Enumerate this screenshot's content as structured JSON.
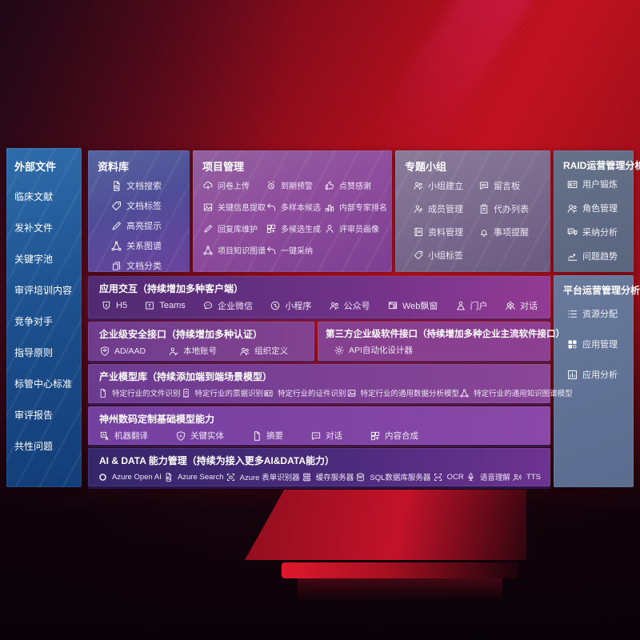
{
  "colors": {
    "background_red": "#b50e1b",
    "sidebar_blue": "#1f5296",
    "panel_purple": "#8a4598",
    "panel_slate": "#5f7090",
    "row_indigo": "#3a2a6e",
    "text": "#ffffff"
  },
  "sidebar": {
    "title": "外部文件",
    "items": [
      {
        "id": "clinical-literature",
        "label": "临床文献"
      },
      {
        "id": "supplement-files",
        "label": "发补文件"
      },
      {
        "id": "keyword-pool",
        "label": "关键字池"
      },
      {
        "id": "review-training-content",
        "label": "审评培训内容"
      },
      {
        "id": "competitors",
        "label": "竞争对手"
      },
      {
        "id": "guidelines",
        "label": "指导原则"
      },
      {
        "id": "standards-center-standards",
        "label": "标管中心标准"
      },
      {
        "id": "review-reports",
        "label": "审评报告"
      },
      {
        "id": "common-issues",
        "label": "共性问题"
      }
    ]
  },
  "repository": {
    "title": "资料库",
    "items": [
      {
        "id": "doc-search",
        "icon": "docsearch",
        "label": "文档搜索"
      },
      {
        "id": "doc-tag",
        "icon": "tag",
        "label": "文档标签"
      },
      {
        "id": "highlight-hint",
        "icon": "pen",
        "label": "高亮提示"
      },
      {
        "id": "relation-graph",
        "icon": "network",
        "label": "关系图谱"
      },
      {
        "id": "doc-category",
        "icon": "docs",
        "label": "文档分类"
      }
    ]
  },
  "project": {
    "title": "项目管理",
    "items": [
      {
        "id": "survey-upload",
        "icon": "cloudup",
        "label": "问卷上传"
      },
      {
        "id": "due-warning",
        "icon": "alarm",
        "label": "到期预警"
      },
      {
        "id": "like-thanks",
        "icon": "thumb",
        "label": "点赞感谢"
      },
      {
        "id": "key-info-extract",
        "icon": "picture",
        "label": "关键信息提取"
      },
      {
        "id": "multi-sample-candidate",
        "icon": "reply",
        "label": "多样本候选"
      },
      {
        "id": "internal-expert-ranking",
        "icon": "podium",
        "label": "内部专家排名"
      },
      {
        "id": "reply-lib-maintain",
        "icon": "pen",
        "label": "回复库维护"
      },
      {
        "id": "multi-candidate-generate",
        "icon": "gridplus",
        "label": "多候选生成"
      },
      {
        "id": "reviewer-portrait",
        "icon": "person",
        "label": "评审员画像"
      },
      {
        "id": "project-knowledge-graph",
        "icon": "network",
        "label": "项目知识图谱"
      },
      {
        "id": "one-click-adopt",
        "icon": "reply",
        "label": "一键采纳"
      }
    ]
  },
  "group": {
    "title": "专题小组",
    "items": [
      {
        "id": "team-setup",
        "icon": "people",
        "label": "小组建立"
      },
      {
        "id": "message-board",
        "icon": "bbs",
        "label": "留言板"
      },
      {
        "id": "member-manage",
        "icon": "personplus",
        "label": "成员管理"
      },
      {
        "id": "todo-list",
        "icon": "clipboard",
        "label": "代办列表"
      },
      {
        "id": "material-manage",
        "icon": "album",
        "label": "资料管理"
      },
      {
        "id": "matter-reminder",
        "icon": "bell",
        "label": "事项提醒"
      },
      {
        "id": "group-tag",
        "icon": "tag",
        "label": "小组标签"
      }
    ]
  },
  "raid": {
    "title": "RAID运营管理分析",
    "items": [
      {
        "id": "user-training",
        "icon": "idcard",
        "label": "用户锻炼"
      },
      {
        "id": "role-manage",
        "icon": "people",
        "label": "角色管理"
      },
      {
        "id": "adoption-analysis",
        "icon": "qachat",
        "label": "采纳分析"
      },
      {
        "id": "issue-trend",
        "icon": "trend",
        "label": "问题趋势"
      }
    ]
  },
  "platform": {
    "title": "平台运营管理分析",
    "items": [
      {
        "id": "resource-allocation",
        "icon": "list",
        "label": "资源分配"
      },
      {
        "id": "app-manage",
        "icon": "appgrid",
        "label": "应用管理"
      },
      {
        "id": "app-analysis",
        "icon": "chartbox",
        "label": "应用分析"
      }
    ]
  },
  "rows": {
    "interaction": {
      "title": "应用交互（持续增加多种客户端）",
      "items": [
        {
          "id": "h5",
          "icon": "h5",
          "label": "H5"
        },
        {
          "id": "teams",
          "icon": "teams",
          "label": "Teams"
        },
        {
          "id": "wecom",
          "icon": "bubble",
          "label": "企业微信"
        },
        {
          "id": "mini-program",
          "icon": "mini",
          "label": "小程序"
        },
        {
          "id": "official-account",
          "icon": "people",
          "label": "公众号"
        },
        {
          "id": "web-popup",
          "icon": "window",
          "label": "Web飘窗"
        },
        {
          "id": "portal",
          "icon": "persondesk",
          "label": "门户"
        },
        {
          "id": "dialog",
          "icon": "peoplechat",
          "label": "对话"
        }
      ]
    },
    "security": {
      "title": "企业级安全接口（持续增加多种认证）",
      "items": [
        {
          "id": "ad-aad",
          "icon": "shield",
          "label": "AD/AAD"
        },
        {
          "id": "local-account",
          "icon": "personcheck",
          "label": "本地账号"
        },
        {
          "id": "org-definition",
          "icon": "people",
          "label": "组织定义"
        }
      ]
    },
    "third_party": {
      "title": "第三方企业级软件接口（持续增加多种企业主流软件接口）",
      "items": [
        {
          "id": "api-auto-designer",
          "icon": "gear",
          "label": "API自动化设计器"
        }
      ]
    },
    "industry": {
      "title": "产业模型库（持续添加端到端场景模型）",
      "items": [
        {
          "id": "industry-file-recognition",
          "icon": "doc",
          "label": "特定行业的文件识别"
        },
        {
          "id": "industry-receipt-recognition",
          "icon": "receipt",
          "label": "特定行业的票据识别"
        },
        {
          "id": "industry-certificate-recognition",
          "icon": "idcard",
          "label": "特定行业的证件识别"
        },
        {
          "id": "industry-data-analysis-model",
          "icon": "picture",
          "label": "特定行业的通用数据分析模型"
        },
        {
          "id": "industry-knowledge-graph-model",
          "icon": "network",
          "label": "特定行业的通用知识图谱模型"
        }
      ]
    },
    "base_model": {
      "title": "神州数码定制基础模型能力",
      "items": [
        {
          "id": "machine-translation",
          "icon": "translate",
          "label": "机器翻译"
        },
        {
          "id": "key-entity",
          "icon": "shieldA",
          "label": "关键实体"
        },
        {
          "id": "summary",
          "icon": "doc",
          "label": "摘要"
        },
        {
          "id": "dialog-capability",
          "icon": "chat",
          "label": "对话"
        },
        {
          "id": "content-compose",
          "icon": "gridplus",
          "label": "内容合成"
        }
      ]
    },
    "ai_data": {
      "title": "AI & DATA 能力管理（持续为接入更多AI&DATA能力）",
      "items": [
        {
          "id": "azure-openai",
          "icon": "openai",
          "label": "Azure Open AI"
        },
        {
          "id": "azure-search",
          "icon": "docsearch",
          "label": "Azure Search"
        },
        {
          "id": "azure-form-recognizer",
          "icon": "formrec",
          "label": "Azure 表单识别器"
        },
        {
          "id": "cache-server",
          "icon": "server",
          "label": "缓存服务器"
        },
        {
          "id": "sql-db-server",
          "icon": "db",
          "label": "SQL数据库服务器"
        },
        {
          "id": "ocr",
          "icon": "ocr",
          "label": "OCR"
        },
        {
          "id": "speech-understanding",
          "icon": "mic",
          "label": "语音理解"
        },
        {
          "id": "tts",
          "icon": "speaker",
          "label": "TTS"
        }
      ]
    }
  }
}
